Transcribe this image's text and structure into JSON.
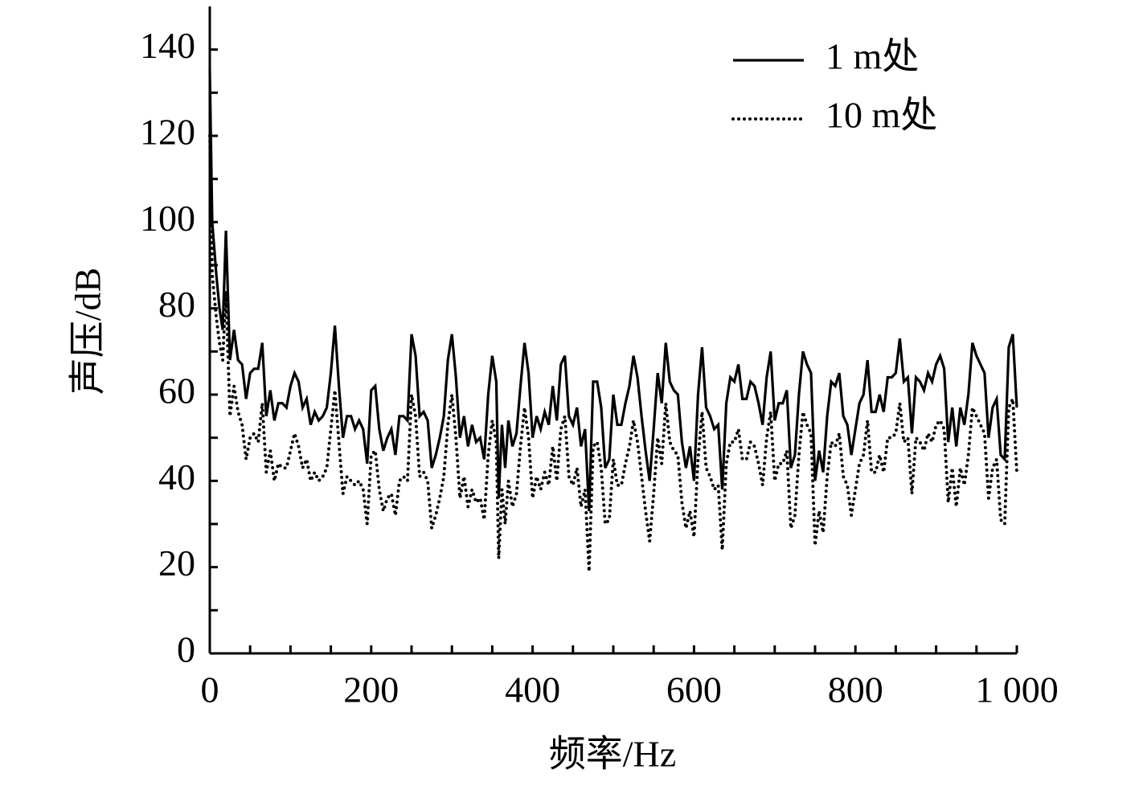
{
  "chart_data": {
    "type": "line",
    "x_label": "频率/Hz",
    "y_label": "声压/dB",
    "x": [
      0,
      3,
      8,
      12,
      16,
      20,
      25,
      30,
      35,
      40,
      45,
      50,
      55,
      60,
      65,
      70,
      75,
      80,
      85,
      90,
      95,
      100,
      105,
      110,
      115,
      120,
      125,
      130,
      135,
      140,
      145,
      150,
      155,
      160,
      165,
      170,
      175,
      180,
      185,
      190,
      195,
      200,
      205,
      210,
      215,
      220,
      225,
      230,
      235,
      240,
      245,
      250,
      255,
      260,
      265,
      270,
      275,
      280,
      285,
      290,
      295,
      300,
      305,
      310,
      315,
      320,
      325,
      330,
      335,
      340,
      345,
      350,
      355,
      358,
      362,
      366,
      370,
      375,
      380,
      385,
      390,
      395,
      400,
      405,
      410,
      415,
      420,
      425,
      430,
      435,
      440,
      445,
      450,
      455,
      460,
      465,
      470,
      475,
      480,
      485,
      490,
      495,
      500,
      505,
      510,
      515,
      520,
      525,
      530,
      535,
      540,
      545,
      550,
      555,
      560,
      565,
      570,
      575,
      580,
      585,
      590,
      595,
      600,
      605,
      610,
      615,
      620,
      625,
      630,
      635,
      640,
      645,
      650,
      655,
      660,
      665,
      670,
      675,
      680,
      685,
      690,
      695,
      700,
      705,
      710,
      715,
      720,
      725,
      730,
      735,
      740,
      745,
      750,
      755,
      760,
      765,
      770,
      775,
      780,
      785,
      790,
      795,
      800,
      805,
      810,
      815,
      820,
      825,
      830,
      835,
      840,
      845,
      850,
      855,
      860,
      865,
      870,
      875,
      880,
      885,
      890,
      895,
      900,
      905,
      910,
      915,
      920,
      925,
      930,
      935,
      940,
      945,
      950,
      955,
      960,
      965,
      970,
      975,
      980,
      985,
      990,
      995,
      1000
    ],
    "series": [
      {
        "name": "1 m处",
        "color": "#000000",
        "style": "solid",
        "values": [
          135,
          100,
          88,
          80,
          75,
          98,
          68,
          75,
          68,
          67,
          59,
          65,
          66,
          66,
          72,
          55,
          61,
          54,
          58,
          58,
          57,
          62,
          65,
          63,
          57,
          59,
          53,
          56,
          54,
          55,
          57,
          65,
          76,
          62,
          50,
          55,
          55,
          52,
          54,
          52,
          44,
          61,
          62,
          52,
          47,
          50,
          52,
          46,
          55,
          55,
          54,
          74,
          69,
          55,
          56,
          54,
          43,
          46,
          50,
          55,
          68,
          74,
          64,
          50,
          55,
          48,
          53,
          49,
          50,
          45,
          60,
          69,
          63,
          36,
          53,
          43,
          54,
          48,
          51,
          62,
          72,
          65,
          50,
          55,
          52,
          56,
          53,
          62,
          54,
          67,
          69,
          55,
          53,
          57,
          48,
          52,
          33,
          63,
          63,
          57,
          43,
          45,
          60,
          53,
          53,
          58,
          62,
          69,
          64,
          55,
          47,
          40,
          52,
          65,
          58,
          72,
          63,
          61,
          60,
          49,
          43,
          48,
          40,
          60,
          71,
          57,
          55,
          52,
          53,
          38,
          58,
          64,
          63,
          67,
          59,
          59,
          63,
          62,
          58,
          53,
          64,
          70,
          54,
          58,
          58,
          61,
          43,
          46,
          60,
          70,
          67,
          65,
          40,
          47,
          42,
          55,
          63,
          62,
          65,
          55,
          53,
          46,
          52,
          58,
          60,
          68,
          56,
          56,
          60,
          56,
          64,
          64,
          65,
          73,
          63,
          64,
          51,
          64,
          63,
          61,
          65,
          63,
          67,
          69,
          66,
          49,
          57,
          48,
          57,
          53,
          60,
          72,
          69,
          67,
          65,
          50,
          57,
          59,
          46,
          45,
          71,
          74,
          57
        ]
      },
      {
        "name": "10 m处",
        "color": "#000000",
        "style": "dotted",
        "values": [
          120,
          88,
          78,
          72,
          68,
          84,
          55,
          62,
          56,
          53,
          45,
          50,
          51,
          49,
          58,
          42,
          47,
          40,
          44,
          43,
          43,
          47,
          51,
          48,
          43,
          45,
          40,
          42,
          40,
          41,
          43,
          52,
          61,
          49,
          37,
          41,
          40,
          39,
          40,
          38,
          30,
          46,
          47,
          38,
          33,
          36,
          37,
          32,
          40,
          41,
          40,
          60,
          55,
          41,
          42,
          40,
          29,
          32,
          36,
          41,
          53,
          60,
          50,
          36,
          41,
          34,
          38,
          35,
          36,
          31,
          46,
          54,
          49,
          22,
          38,
          30,
          40,
          34,
          37,
          48,
          57,
          50,
          36,
          41,
          38,
          42,
          39,
          48,
          40,
          52,
          55,
          41,
          39,
          43,
          34,
          38,
          19,
          48,
          49,
          43,
          30,
          31,
          45,
          39,
          39,
          44,
          48,
          54,
          49,
          41,
          33,
          26,
          37,
          50,
          44,
          58,
          49,
          47,
          46,
          35,
          29,
          33,
          27,
          45,
          56,
          43,
          41,
          38,
          39,
          24,
          44,
          49,
          49,
          52,
          45,
          45,
          49,
          48,
          44,
          39,
          50,
          56,
          40,
          44,
          44,
          47,
          29,
          32,
          46,
          56,
          53,
          51,
          25,
          33,
          28,
          41,
          49,
          48,
          51,
          41,
          39,
          32,
          38,
          44,
          46,
          54,
          42,
          42,
          46,
          42,
          50,
          50,
          51,
          58,
          49,
          50,
          37,
          50,
          49,
          47,
          51,
          49,
          53,
          54,
          52,
          35,
          43,
          34,
          43,
          39,
          46,
          57,
          55,
          53,
          51,
          36,
          43,
          45,
          31,
          30,
          57,
          59,
          42
        ]
      }
    ],
    "xlim": [
      0,
      1000
    ],
    "ylim": [
      0,
      150
    ],
    "xticks": [
      0,
      200,
      400,
      600,
      800,
      {
        "value": 1000,
        "label": "1 000"
      }
    ],
    "yticks": [
      0,
      20,
      40,
      60,
      80,
      100,
      120,
      140
    ],
    "legend": "upper right"
  }
}
